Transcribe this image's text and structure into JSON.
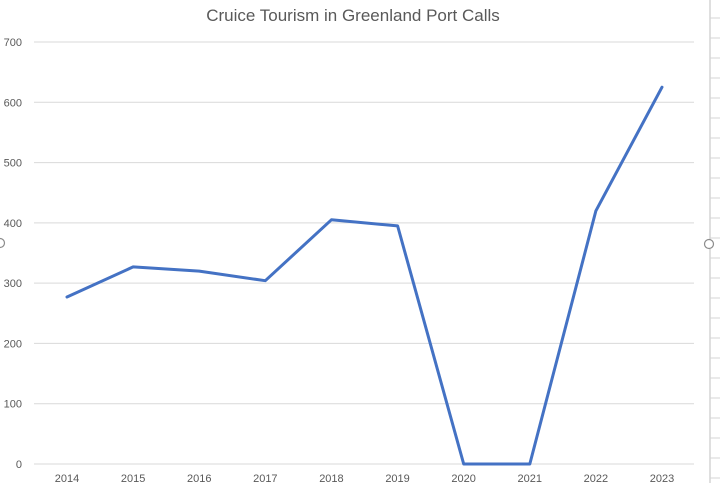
{
  "chart_data": {
    "type": "line",
    "title": "Cruice Tourism in Greenland Port Calls",
    "xlabel": "",
    "ylabel": "",
    "categories": [
      "2014",
      "2015",
      "2016",
      "2017",
      "2018",
      "2019",
      "2020",
      "2021",
      "2022",
      "2023"
    ],
    "series": [
      {
        "name": "",
        "color": "#4472c4",
        "values": [
          277,
          327,
          320,
          304,
          405,
          395,
          0,
          0,
          420,
          625
        ]
      }
    ],
    "ylim": [
      0,
      700
    ],
    "yticks": [
      0,
      100,
      200,
      300,
      400,
      500,
      600,
      700
    ],
    "grid": true,
    "legend": "none"
  }
}
